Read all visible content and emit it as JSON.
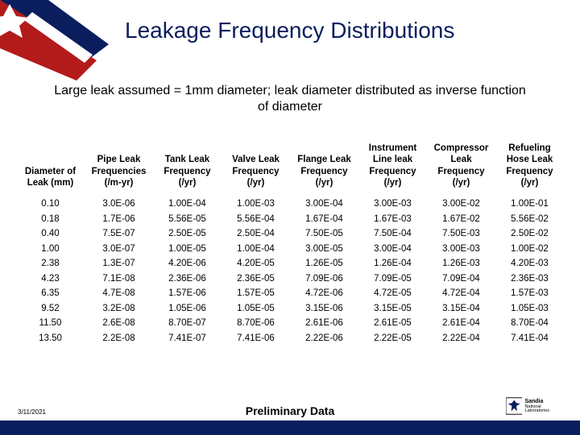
{
  "title": "Leakage Frequency Distributions",
  "subtitle": "Large leak assumed = 1mm diameter; leak diameter distributed as inverse function of diameter",
  "date": "3/11/2021",
  "preliminary": "Preliminary Data",
  "logo": {
    "main": "Sandia",
    "sub": "National\nLaboratories"
  },
  "colors": {
    "title": "#0a1e5e",
    "bar": "#0a1e5e",
    "flag_blue": "#0a1e5e",
    "flag_red": "#b31b1b",
    "flag_white": "#ffffff",
    "text": "#000000",
    "bg": "#ffffff"
  },
  "table": {
    "headers": [
      "Diameter of Leak (mm)",
      "Pipe Leak Frequencies (/m-yr)",
      "Tank Leak Frequency (/yr)",
      "Valve Leak Frequency (/yr)",
      "Flange Leak Frequency (/yr)",
      "Instrument Line leak Frequency (/yr)",
      "Compressor Leak Frequency (/yr)",
      "Refueling Hose Leak Frequency (/yr)"
    ],
    "rows": [
      [
        "0.10",
        "3.0E-06",
        "1.00E-04",
        "1.00E-03",
        "3.00E-04",
        "3.00E-03",
        "3.00E-02",
        "1.00E-01"
      ],
      [
        "0.18",
        "1.7E-06",
        "5.56E-05",
        "5.56E-04",
        "1.67E-04",
        "1.67E-03",
        "1.67E-02",
        "5.56E-02"
      ],
      [
        "0.40",
        "7.5E-07",
        "2.50E-05",
        "2.50E-04",
        "7.50E-05",
        "7.50E-04",
        "7.50E-03",
        "2.50E-02"
      ],
      [
        "1.00",
        "3.0E-07",
        "1.00E-05",
        "1.00E-04",
        "3.00E-05",
        "3.00E-04",
        "3.00E-03",
        "1.00E-02"
      ],
      [
        "2.38",
        "1.3E-07",
        "4.20E-06",
        "4.20E-05",
        "1.26E-05",
        "1.26E-04",
        "1.26E-03",
        "4.20E-03"
      ],
      [
        "4.23",
        "7.1E-08",
        "2.36E-06",
        "2.36E-05",
        "7.09E-06",
        "7.09E-05",
        "7.09E-04",
        "2.36E-03"
      ],
      [
        "6.35",
        "4.7E-08",
        "1.57E-06",
        "1.57E-05",
        "4.72E-06",
        "4.72E-05",
        "4.72E-04",
        "1.57E-03"
      ],
      [
        "9.52",
        "3.2E-08",
        "1.05E-06",
        "1.05E-05",
        "3.15E-06",
        "3.15E-05",
        "3.15E-04",
        "1.05E-03"
      ],
      [
        "11.50",
        "2.6E-08",
        "8.70E-07",
        "8.70E-06",
        "2.61E-06",
        "2.61E-05",
        "2.61E-04",
        "8.70E-04"
      ],
      [
        "13.50",
        "2.2E-08",
        "7.41E-07",
        "7.41E-06",
        "2.22E-06",
        "2.22E-05",
        "2.22E-04",
        "7.41E-04"
      ]
    ]
  }
}
